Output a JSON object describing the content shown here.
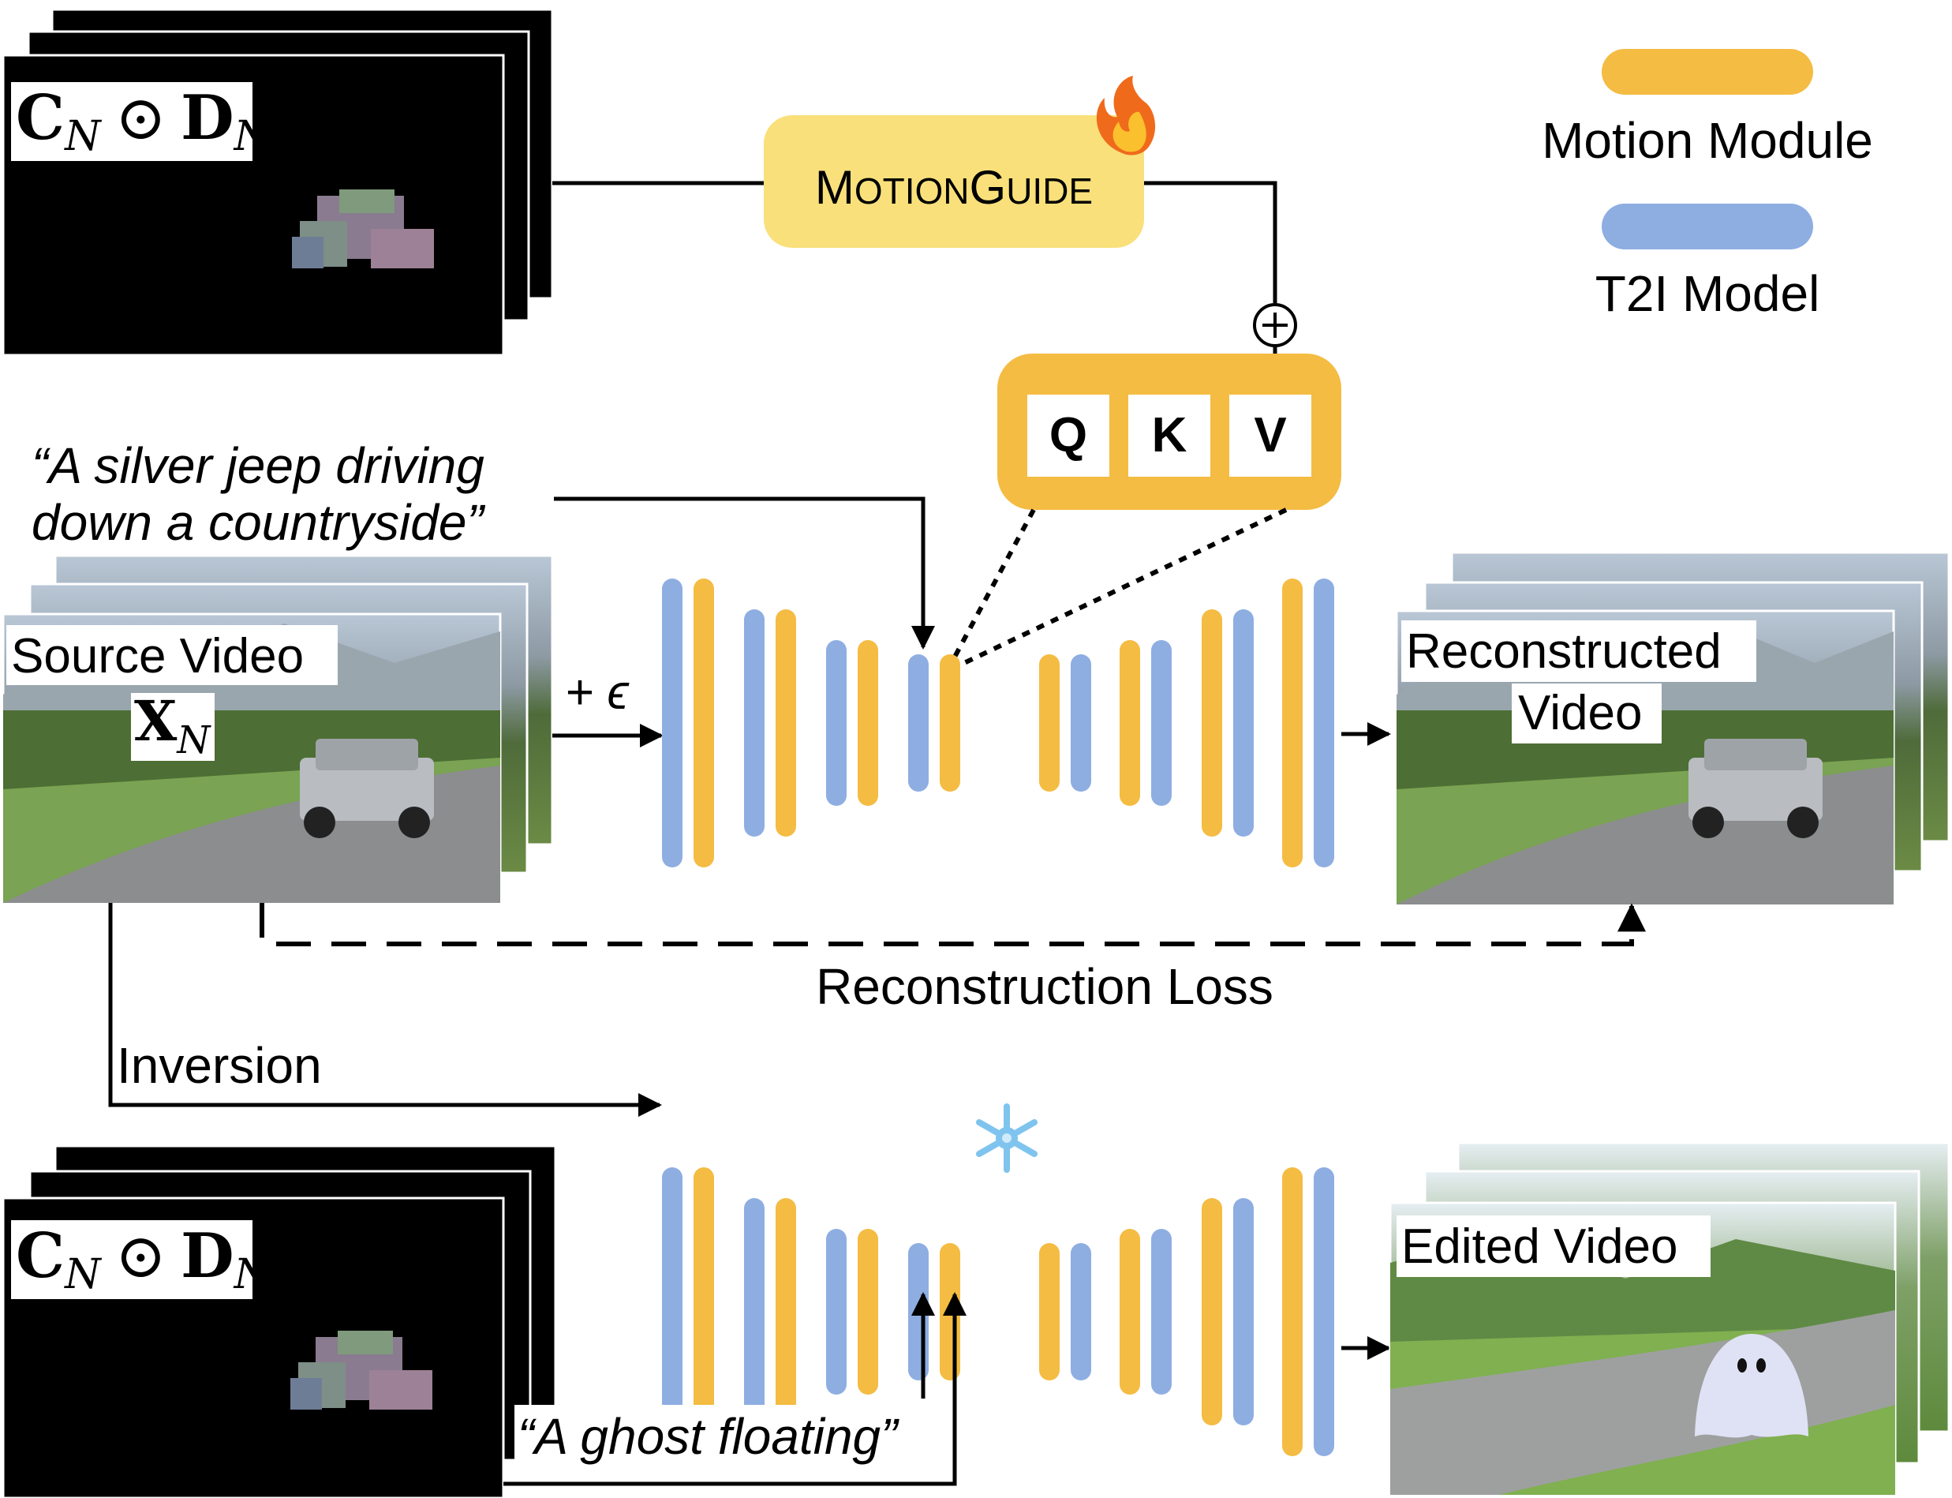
{
  "legend": {
    "motion_module": "Motion Module",
    "t2i_model": "T2I Model"
  },
  "colors": {
    "motion_module": "#F4BC42",
    "t2i_model": "#8EAEE2",
    "motionguide_box": "#F9E07A",
    "qkv_box": "#F4BC42",
    "frame_black": "#000000"
  },
  "motionguide": {
    "label_big1": "M",
    "label_small1": "OTION",
    "label_big2": "G",
    "label_small2": "UIDE",
    "icon": "fire-icon"
  },
  "qkv": [
    "Q",
    "K",
    "V"
  ],
  "plus_symbol": "⊕",
  "prompt_top": {
    "line1": "“A silver jeep driving",
    "line2": "down a countryside”"
  },
  "prompt_bottom": "“A ghost floating”",
  "noise_label": "+ ϵ",
  "source_video": {
    "label": "Source Video",
    "symbol": "X",
    "subscript": "N"
  },
  "reconstructed_video": {
    "line1": "Reconstructed",
    "line2": "Video"
  },
  "edited_video": "Edited Video",
  "reconstruction_loss": "Reconstruction Loss",
  "inversion": "Inversion",
  "motion_input": {
    "c": "C",
    "odot": "⊙",
    "d": "D",
    "subscript": "N"
  },
  "frozen_icon": "snowflake-icon"
}
